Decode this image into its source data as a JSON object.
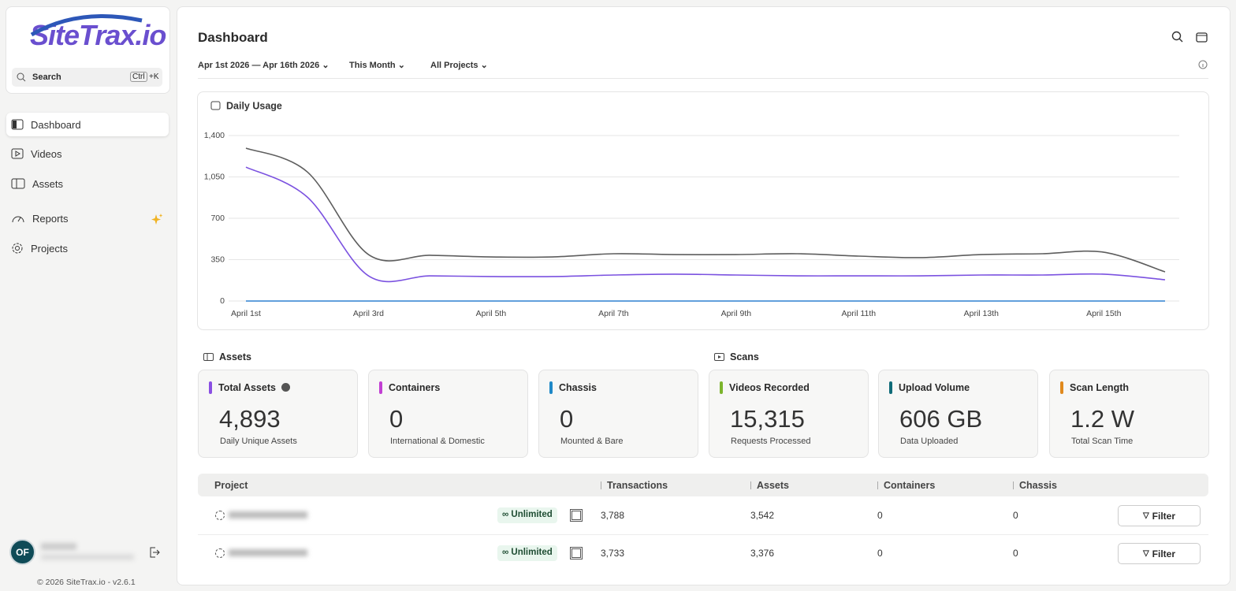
{
  "sidebar": {
    "logo": "SiteTrax.io",
    "search": "Search",
    "shortcut_key": "Ctrl",
    "shortcut_suffix": "+K",
    "nav": [
      "Dashboard",
      "Videos",
      "Assets",
      "Reports",
      "Projects"
    ],
    "user_initials": "OF",
    "footer": "© 2026 SiteTrax.io - v2.6.1"
  },
  "header": {
    "title": "Dashboard",
    "filters": [
      "Apr 1st 2026 — Apr 16th 2026",
      "This Month",
      "All Projects"
    ]
  },
  "chart_data": {
    "type": "line",
    "title": "Daily Usage",
    "categories": [
      "April 1st",
      null,
      "April 3rd",
      null,
      "April 5th",
      null,
      "April 7th",
      null,
      "April 9th",
      null,
      "April 11th",
      null,
      "April 13th",
      null,
      "April 15th",
      null
    ],
    "series": [
      {
        "color": "#5e5e5e",
        "values": [
          1293,
          1093,
          393,
          387,
          373,
          373,
          400,
          393,
          393,
          400,
          380,
          367,
          393,
          400,
          413,
          247
        ]
      },
      {
        "color": "#7b52e0",
        "values": [
          1133,
          880,
          213,
          213,
          207,
          207,
          220,
          227,
          220,
          213,
          213,
          213,
          220,
          220,
          227,
          180
        ]
      },
      {
        "color": "#2f80d1",
        "values": [
          0,
          0,
          0,
          0,
          0,
          0,
          0,
          0,
          0,
          0,
          0,
          0,
          0,
          0,
          0,
          0
        ]
      }
    ],
    "ylim": [
      0,
      1400
    ],
    "yticks": [
      0,
      350,
      700,
      {
        "value": 1050,
        "label": "1,050"
      },
      {
        "value": 1400,
        "label": "1,400"
      }
    ],
    "grid": true
  },
  "sections": {
    "assets": "Assets",
    "scans": "Scans"
  },
  "cards": [
    {
      "label": "Total Assets",
      "value": "4,893",
      "sub": "Daily Unique Assets",
      "color": "#8a4fe3"
    },
    {
      "label": "Containers",
      "value": "0",
      "sub": "International & Domestic",
      "color": "#c23fd3"
    },
    {
      "label": "Chassis",
      "value": "0",
      "sub": "Mounted & Bare",
      "color": "#1e88c7"
    },
    {
      "label": "Videos Recorded",
      "value": "15,315",
      "sub": "Requests Processed",
      "color": "#7cb42c"
    },
    {
      "label": "Upload Volume",
      "value": "606 GB",
      "sub": "Data Uploaded",
      "color": "#0f6b78"
    },
    {
      "label": "Scan Length",
      "value": "1.2 W",
      "sub": "Total Scan Time",
      "color": "#e0891d"
    }
  ],
  "table": {
    "headers": [
      "Project",
      "Transactions",
      "Assets",
      "Containers",
      "Chassis"
    ],
    "rows": [
      {
        "badge": "Unlimited",
        "transactions": "3,788",
        "assets": "3,542",
        "containers": "0",
        "chassis": "0",
        "action": "Filter"
      },
      {
        "badge": "Unlimited",
        "transactions": "3,733",
        "assets": "3,376",
        "containers": "0",
        "chassis": "0",
        "action": "Filter"
      }
    ]
  }
}
